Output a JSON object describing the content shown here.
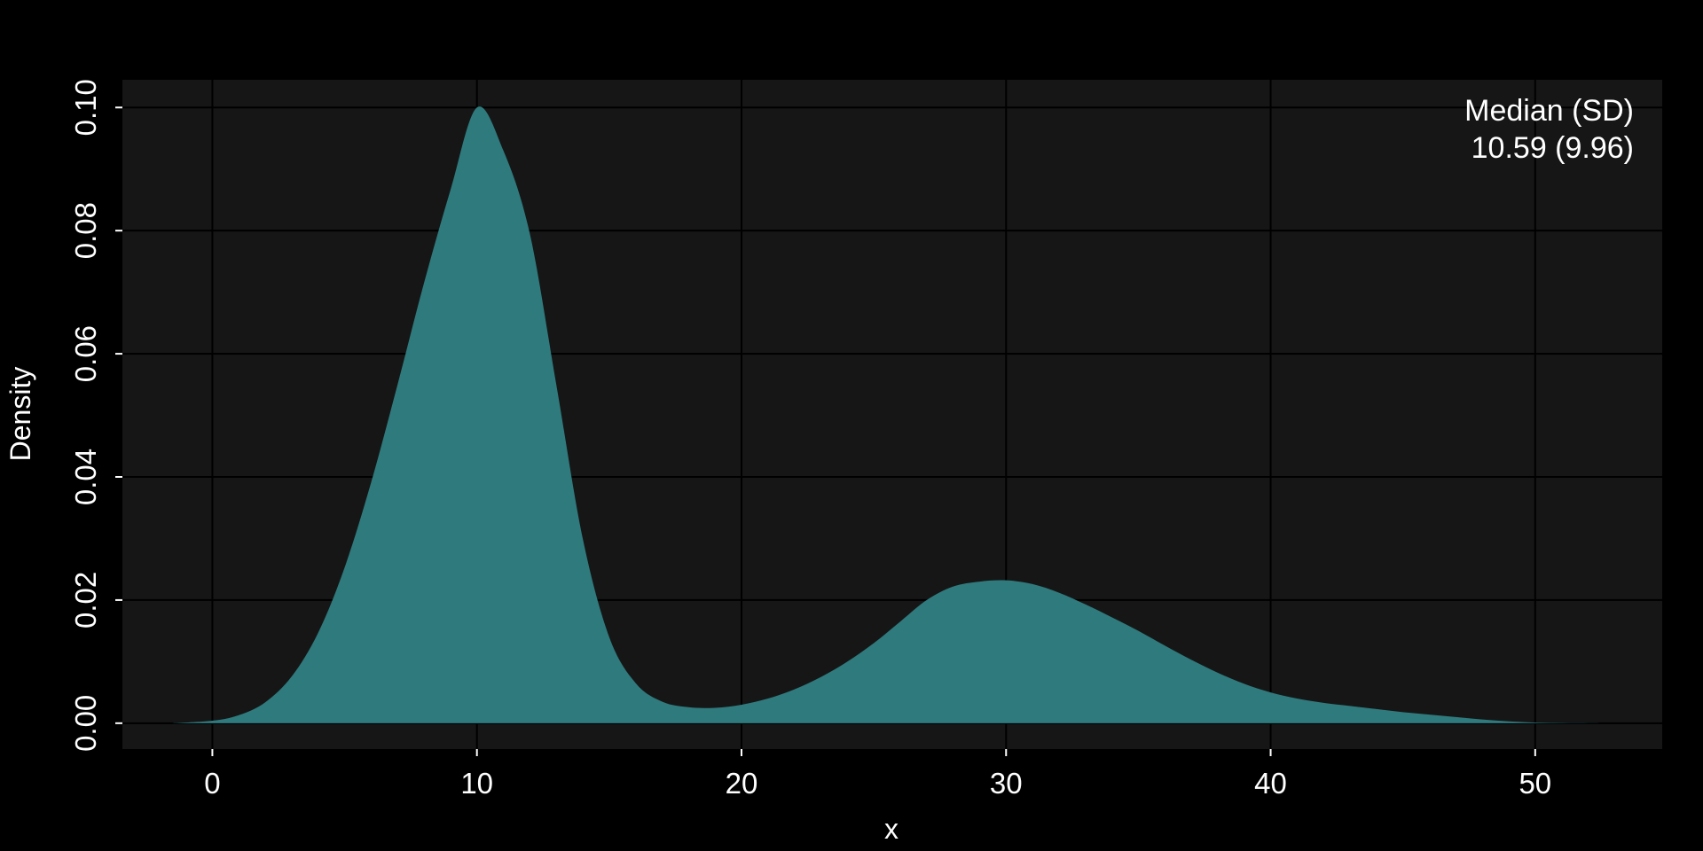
{
  "chart_data": {
    "type": "area",
    "title": "",
    "xlabel": "x",
    "ylabel": "Density",
    "xlim": [
      -3.4,
      54.8
    ],
    "ylim": [
      -0.0042,
      0.1045
    ],
    "x_ticks": [
      0,
      10,
      20,
      30,
      40,
      50
    ],
    "y_ticks": [
      0.0,
      0.02,
      0.04,
      0.06,
      0.08,
      0.1
    ],
    "y_tick_labels": [
      "0.00",
      "0.02",
      "0.04",
      "0.06",
      "0.08",
      "0.10"
    ],
    "grid": true,
    "legend_position": "top-right",
    "colors": {
      "background": "#000000",
      "panel": "#161616",
      "grid": "#000000",
      "fill": "#2f7a7d",
      "accent": "#3a9a9f",
      "text": "#ffffff"
    },
    "annotation": {
      "header": "Median (SD)",
      "value": "10.59 (9.96)"
    },
    "series": [
      {
        "x": [
          -1.5,
          0,
          1,
          2,
          3,
          4,
          5,
          6,
          7,
          8,
          9,
          10,
          11,
          12,
          13,
          14,
          15,
          16,
          17,
          18,
          19,
          20,
          21,
          22,
          23,
          24,
          25,
          26,
          27,
          28,
          29,
          30,
          31,
          32,
          33,
          34,
          35,
          36,
          37,
          38,
          39,
          40,
          41,
          42,
          43,
          44,
          45,
          46,
          47,
          48,
          49,
          50,
          51,
          52,
          53
        ],
        "y": [
          0.0,
          0.0004,
          0.0013,
          0.0034,
          0.0076,
          0.0147,
          0.0253,
          0.0391,
          0.055,
          0.0715,
          0.0866,
          0.1,
          0.093,
          0.0795,
          0.055,
          0.03,
          0.014,
          0.0065,
          0.0035,
          0.0026,
          0.0025,
          0.003,
          0.004,
          0.0055,
          0.0075,
          0.01,
          0.013,
          0.0165,
          0.02,
          0.0222,
          0.023,
          0.0232,
          0.0226,
          0.0212,
          0.0193,
          0.0172,
          0.015,
          0.0126,
          0.0103,
          0.0082,
          0.0064,
          0.005,
          0.004,
          0.0033,
          0.0028,
          0.0023,
          0.0018,
          0.0014,
          0.001,
          0.0006,
          0.0003,
          0.0001,
          5e-05,
          2e-05,
          0.0
        ]
      }
    ]
  }
}
